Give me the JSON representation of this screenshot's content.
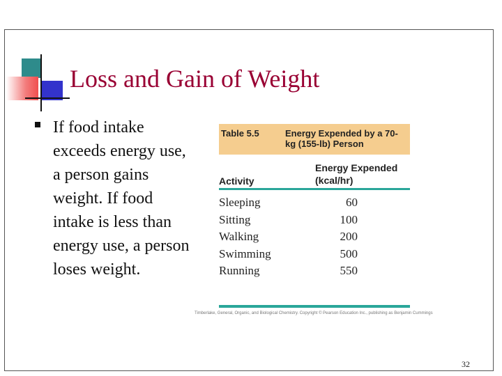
{
  "slide": {
    "title": "Loss and Gain of Weight",
    "bullet_text": "If food intake exceeds energy use, a person gains weight. If food intake is less than energy use, a person loses weight.",
    "page_number": "32"
  },
  "table": {
    "number": "Table 5.5",
    "caption": "Energy Expended by a 70-kg (155-lb) Person",
    "col_activity": "Activity",
    "col_energy_line1": "Energy Expended",
    "col_energy_line2": "(kcal/hr)",
    "rows": [
      {
        "activity": "Sleeping",
        "value": "60"
      },
      {
        "activity": "Sitting",
        "value": "100"
      },
      {
        "activity": "Walking",
        "value": "200"
      },
      {
        "activity": "Swimming",
        "value": "500"
      },
      {
        "activity": "Running",
        "value": "550"
      }
    ],
    "credit": "Timberlake, General, Organic, and Biological Chemistry. Copyright © Pearson Education Inc., publishing as Benjamin Cummings"
  },
  "colors": {
    "title": "#990033",
    "table_header_bg": "#f5cd8f",
    "table_rule": "#2aa69a"
  }
}
